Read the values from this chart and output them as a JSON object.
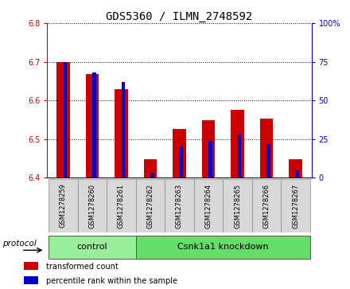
{
  "title": "GDS5360 / ILMN_2748592",
  "samples": [
    "GSM1278259",
    "GSM1278260",
    "GSM1278261",
    "GSM1278262",
    "GSM1278263",
    "GSM1278264",
    "GSM1278265",
    "GSM1278266",
    "GSM1278267"
  ],
  "red_values": [
    6.7,
    6.668,
    6.63,
    6.447,
    6.527,
    6.548,
    6.575,
    6.552,
    6.448
  ],
  "blue_values": [
    75.0,
    68.0,
    62.0,
    3.0,
    20.0,
    24.0,
    28.0,
    22.0,
    5.0
  ],
  "ylim_left": [
    6.4,
    6.8
  ],
  "ylim_right": [
    0,
    100
  ],
  "yticks_left": [
    6.4,
    6.5,
    6.6,
    6.7,
    6.8
  ],
  "yticks_right": [
    0,
    25,
    50,
    75,
    100
  ],
  "red_color": "#cc0000",
  "blue_color": "#0000cc",
  "red_bar_width": 0.45,
  "blue_bar_width": 0.12,
  "control_color": "#99ee99",
  "knockdown_color": "#66dd66",
  "xlabels_bg": "#d8d8d8",
  "title_fontsize": 10,
  "tick_fontsize": 7,
  "sample_fontsize": 6
}
